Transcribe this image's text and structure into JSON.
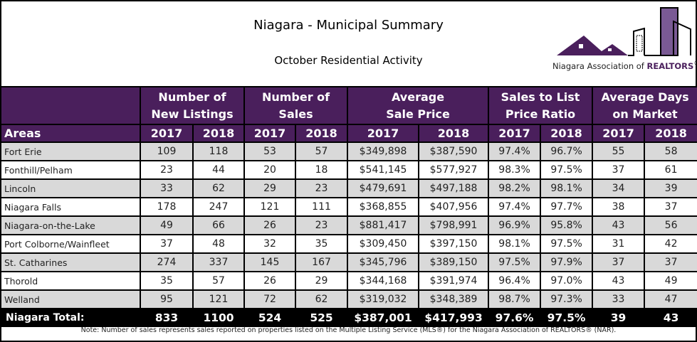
{
  "title": "Niagara - Municipal Summary",
  "subtitle": "October Residential Activity",
  "logo": {
    "text_prefix": "Niagara Association of ",
    "text_brand": "REALTORS",
    "registered": "®"
  },
  "colors": {
    "header": "#4a1f5c",
    "row_alt": "#d9d9d9",
    "total": "#000000"
  },
  "groups": [
    "Number of New Listings",
    "Number of Sales",
    "Average Sale Price",
    "Sales to List Price Ratio",
    "Average Days on Market"
  ],
  "areas_label": "Areas",
  "years": [
    "2017",
    "2018"
  ],
  "rows": [
    [
      "Fort Erie",
      "109",
      "118",
      "53",
      "57",
      "$349,898",
      "$387,590",
      "97.4%",
      "96.7%",
      "55",
      "58"
    ],
    [
      "Fonthill/Pelham",
      "23",
      "44",
      "20",
      "18",
      "$541,145",
      "$577,927",
      "98.3%",
      "97.5%",
      "37",
      "61"
    ],
    [
      "Lincoln",
      "33",
      "62",
      "29",
      "23",
      "$479,691",
      "$497,188",
      "98.2%",
      "98.1%",
      "34",
      "39"
    ],
    [
      "Niagara Falls",
      "178",
      "247",
      "121",
      "111",
      "$368,855",
      "$407,956",
      "97.4%",
      "97.7%",
      "38",
      "37"
    ],
    [
      "Niagara-on-the-Lake",
      "49",
      "66",
      "26",
      "23",
      "$881,417",
      "$798,991",
      "96.9%",
      "95.8%",
      "43",
      "56"
    ],
    [
      "Port Colborne/Wainfleet",
      "37",
      "48",
      "32",
      "35",
      "$309,450",
      "$397,150",
      "98.1%",
      "97.5%",
      "31",
      "42"
    ],
    [
      "St. Catharines",
      "274",
      "337",
      "145",
      "167",
      "$345,796",
      "$389,150",
      "97.5%",
      "97.9%",
      "37",
      "37"
    ],
    [
      "Thorold",
      "35",
      "57",
      "26",
      "29",
      "$344,168",
      "$391,974",
      "96.4%",
      "97.0%",
      "43",
      "49"
    ],
    [
      "Welland",
      "95",
      "121",
      "72",
      "62",
      "$319,032",
      "$348,389",
      "98.7%",
      "97.3%",
      "33",
      "47"
    ]
  ],
  "total": [
    "Niagara Total:",
    "833",
    "1100",
    "524",
    "525",
    "$387,001",
    "$417,993",
    "97.6%",
    "97.5%",
    "39",
    "43"
  ],
  "note": "Note: Number of sales represents sales reported on properties listed on the Multiple Listing Service (MLS®) for the Niagara Association of REALTORS® (NAR)."
}
